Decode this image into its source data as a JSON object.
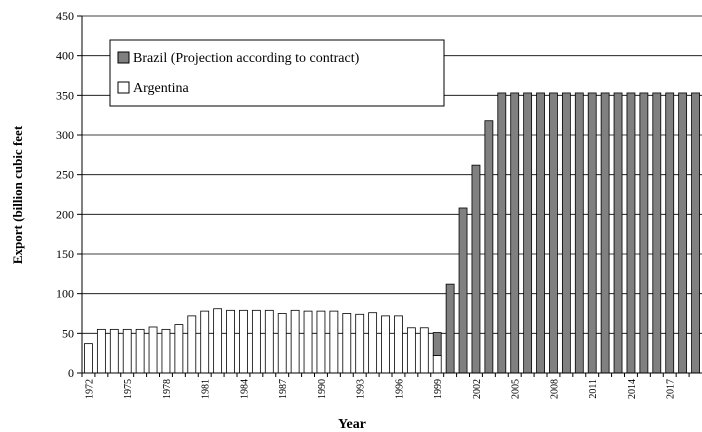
{
  "chart_data": {
    "type": "stacked_bar",
    "y_label": "Export (billion cubic feet",
    "x_label": "Year",
    "categories": [
      "1972",
      null,
      null,
      "1975",
      null,
      null,
      "1978",
      null,
      null,
      "1981",
      null,
      null,
      "1984",
      null,
      null,
      "1987",
      null,
      null,
      "1990",
      null,
      null,
      "1993",
      null,
      null,
      "1996",
      null,
      null,
      "1999",
      null,
      null,
      "2002",
      null,
      null,
      "2005",
      null,
      null,
      "2008",
      null,
      null,
      "2011",
      null,
      null,
      "2014",
      null,
      null,
      "2017",
      null,
      null
    ],
    "series": [
      {
        "name": "Argentina",
        "color": "#ffffff",
        "values": [
          37,
          55,
          55,
          55,
          55,
          58,
          55,
          61,
          72,
          78,
          81,
          79,
          79,
          79,
          79,
          75,
          79,
          78,
          78,
          78,
          75,
          74,
          76,
          72,
          72,
          57,
          57,
          22,
          null,
          null,
          null,
          null,
          null,
          null,
          null,
          null,
          null,
          null,
          null,
          null,
          null,
          null,
          null,
          null,
          null,
          null,
          null,
          null
        ]
      },
      {
        "name": "Brazil (Projection according to contract)",
        "color": "#808080",
        "values": [
          null,
          null,
          null,
          null,
          null,
          null,
          null,
          null,
          null,
          null,
          null,
          null,
          null,
          null,
          null,
          null,
          null,
          null,
          null,
          null,
          null,
          null,
          null,
          null,
          null,
          null,
          null,
          29,
          112,
          208,
          262,
          318,
          353,
          353,
          353,
          353,
          353,
          353,
          353,
          353,
          353,
          353,
          353,
          353,
          353,
          353,
          353,
          353
        ]
      }
    ],
    "legend_order": [
      1,
      0
    ],
    "ylim": [
      0,
      450
    ],
    "yticks": [
      0,
      50,
      100,
      150,
      200,
      250,
      300,
      350,
      400,
      450
    ],
    "grid": true
  }
}
